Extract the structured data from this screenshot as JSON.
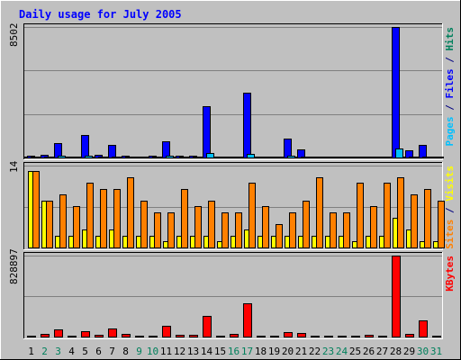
{
  "chart_data": {
    "type": "bar",
    "title": "Daily usage for July 2005",
    "categories": [
      "1",
      "2",
      "3",
      "4",
      "5",
      "6",
      "7",
      "8",
      "9",
      "10",
      "11",
      "12",
      "13",
      "14",
      "15",
      "16",
      "17",
      "18",
      "19",
      "20",
      "21",
      "22",
      "23",
      "24",
      "25",
      "26",
      "27",
      "28",
      "29",
      "30",
      "31"
    ],
    "weekend_days": [
      2,
      3,
      9,
      10,
      16,
      17,
      23,
      24,
      30,
      31
    ],
    "panels": [
      {
        "id": "hits-panel",
        "max_label": "8502",
        "ylim": [
          0,
          8502
        ],
        "right_label": [
          {
            "text": "Pages",
            "color": "#00C0FF"
          },
          {
            "text": " / ",
            "color": "#000080"
          },
          {
            "text": "Files",
            "color": "#0000FF"
          },
          {
            "text": " / ",
            "color": "#000080"
          },
          {
            "text": "Hits",
            "color": "#00805C"
          }
        ],
        "series": [
          {
            "name": "Hits",
            "color": "#00805C",
            "values": [
              60,
              70,
              60,
              60,
              60,
              60,
              60,
              70,
              60,
              60,
              60,
              60,
              70,
              60,
              60,
              60,
              60,
              60,
              60,
              60,
              60,
              60,
              60,
              60,
              60,
              60,
              60,
              60,
              60,
              60,
              60
            ]
          },
          {
            "name": "Files",
            "color": "#0000FF",
            "values": [
              90,
              150,
              950,
              60,
              1450,
              170,
              850,
              100,
              60,
              100,
              1050,
              120,
              100,
              3350,
              60,
              60,
              4200,
              60,
              60,
              1250,
              550,
              60,
              60,
              60,
              60,
              60,
              60,
              8502,
              450,
              800,
              60
            ]
          },
          {
            "name": "Pages",
            "color": "#00C0FF",
            "values": [
              30,
              40,
              110,
              20,
              100,
              30,
              80,
              30,
              20,
              30,
              100,
              30,
              30,
              300,
              20,
              20,
              250,
              20,
              20,
              100,
              40,
              20,
              20,
              20,
              20,
              20,
              20,
              600,
              70,
              80,
              20
            ]
          }
        ]
      },
      {
        "id": "visits-panel",
        "max_label": "14",
        "ylim": [
          0,
          14
        ],
        "right_label": [
          {
            "text": "Sites",
            "color": "#FF8000"
          },
          {
            "text": " / ",
            "color": "#000080"
          },
          {
            "text": "Visits",
            "color": "#FFFF00"
          }
        ],
        "series": [
          {
            "name": "Visits",
            "color": "#FFFF00",
            "values": [
              13,
              8,
              2,
              2,
              3,
              2,
              3,
              2,
              2,
              2,
              1,
              2,
              2,
              2,
              1,
              2,
              3,
              2,
              2,
              2,
              2,
              2,
              2,
              2,
              1,
              2,
              2,
              5,
              3,
              1,
              1
            ]
          },
          {
            "name": "Sites",
            "color": "#FF8000",
            "values": [
              13,
              8,
              9,
              7,
              11,
              10,
              10,
              12,
              8,
              6,
              6,
              10,
              7,
              8,
              6,
              6,
              11,
              7,
              4,
              6,
              8,
              12,
              6,
              6,
              11,
              7,
              11,
              12,
              9,
              10,
              8
            ]
          }
        ]
      },
      {
        "id": "kbytes-panel",
        "max_label": "828897",
        "ylim": [
          0,
          828897
        ],
        "right_label": [
          {
            "text": "KBytes",
            "color": "#FF0000"
          }
        ],
        "series": [
          {
            "name": "KBytes",
            "color": "#FF0000",
            "values": [
              5000,
              25000,
              75000,
              10000,
              55000,
              20000,
              85000,
              30000,
              10000,
              10000,
              110000,
              20000,
              20000,
              215000,
              10000,
              25000,
              340000,
              10000,
              10000,
              45000,
              35000,
              10000,
              10000,
              10000,
              10000,
              20000,
              10000,
              828897,
              30000,
              165000,
              10000
            ]
          }
        ]
      }
    ]
  }
}
